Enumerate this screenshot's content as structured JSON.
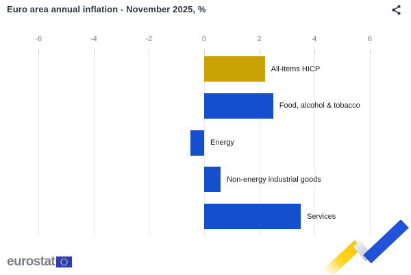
{
  "header": {
    "title": "Euro area annual inflation - November 2025, %",
    "share_icon": "share-icon"
  },
  "chart_data": {
    "type": "bar",
    "orientation": "horizontal",
    "title": "Euro area annual inflation - November 2025, %",
    "unit": "%",
    "categories": [
      "All-items HICP",
      "Food, alcohol & tobacco",
      "Energy",
      "Non-energy industrial goods",
      "Services"
    ],
    "values": [
      2.2,
      2.5,
      -0.5,
      0.6,
      3.5
    ],
    "bar_colors": [
      "#c9a204",
      "#1450cd",
      "#1450cd",
      "#1450cd",
      "#1450cd"
    ],
    "x_ticks": [
      -6,
      -4,
      -2,
      0,
      2,
      4,
      6
    ],
    "xlim": [
      -6,
      7.4
    ],
    "xlabel": "",
    "ylabel": "",
    "grid": true,
    "legend": "none"
  },
  "footer": {
    "logo_text": "eurostat",
    "flag_icon": "eu-flag-icon",
    "deco_icon": "zigzag-trend-graphic"
  },
  "colors": {
    "accent_gold": "#c9a204",
    "accent_blue": "#1450cd",
    "grid": "#e9e9e9",
    "axis_label": "#7a7a7a",
    "category_label": "#1a1a1a",
    "title": "#2c3644",
    "logo_gray": "#7f8186",
    "deco_yellow": "#fed10a",
    "deco_blue": "#2052da"
  }
}
